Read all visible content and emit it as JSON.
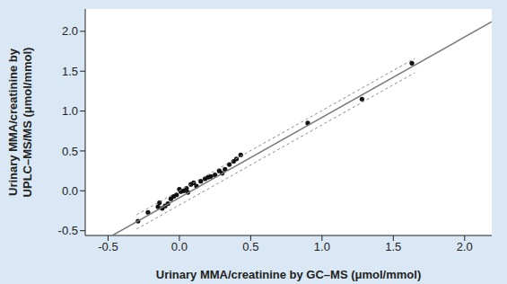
{
  "chart_data": {
    "type": "scatter",
    "x_label": "Urinary MMA/creatinine by GC–MS (μmol/mmol)",
    "y_label": [
      "Urinary MMA/creatinine by",
      "UPLC–MS/MS (μmol/mmol)"
    ],
    "xlim": [
      -0.66,
      2.19
    ],
    "ylim": [
      -0.56,
      2.28
    ],
    "xticks": [
      -0.5,
      {
        "value": 0,
        "label": "0.0"
      },
      0.5,
      {
        "value": 1,
        "label": "1.0"
      },
      1.5,
      {
        "value": 2,
        "label": "2.0"
      }
    ],
    "yticks": [
      -0.5,
      {
        "value": 0,
        "label": "0.0"
      },
      0.5,
      {
        "value": 1,
        "label": "1.0"
      },
      1.5,
      {
        "value": 2,
        "label": "2.0"
      }
    ],
    "grid": false,
    "series": [
      {
        "type": "scatter",
        "marker": "circle",
        "color": "#111111",
        "x": [
          -0.29,
          -0.22,
          -0.15,
          -0.14,
          -0.12,
          -0.1,
          -0.08,
          -0.06,
          -0.04,
          -0.02,
          0.0,
          0.01,
          0.03,
          0.05,
          0.06,
          0.08,
          0.1,
          0.12,
          0.15,
          0.18,
          0.2,
          0.22,
          0.25,
          0.28,
          0.3,
          0.32,
          0.35,
          0.38,
          0.4,
          0.43,
          0.9,
          1.28,
          1.63
        ],
        "values": [
          -0.38,
          -0.27,
          -0.2,
          -0.15,
          -0.22,
          -0.19,
          -0.16,
          -0.1,
          -0.07,
          -0.05,
          0.02,
          -0.01,
          0.0,
          0.03,
          -0.02,
          0.08,
          0.1,
          0.06,
          0.12,
          0.15,
          0.17,
          0.18,
          0.2,
          0.25,
          0.22,
          0.27,
          0.33,
          0.37,
          0.4,
          0.45,
          0.85,
          1.15,
          1.6
        ]
      },
      {
        "type": "line",
        "line_style": "solid",
        "color": "#7a7a7a",
        "x": [
          -0.47,
          2.19
        ],
        "values": [
          -0.56,
          2.12
        ]
      },
      {
        "type": "line",
        "line_style": "dashed",
        "color": "#8a8a8a",
        "x": [
          -0.3,
          1.65
        ],
        "values": [
          -0.3,
          1.66
        ]
      },
      {
        "type": "line",
        "line_style": "dashed",
        "color": "#8a8a8a",
        "x": [
          -0.3,
          1.65
        ],
        "values": [
          -0.48,
          1.48
        ]
      }
    ]
  }
}
